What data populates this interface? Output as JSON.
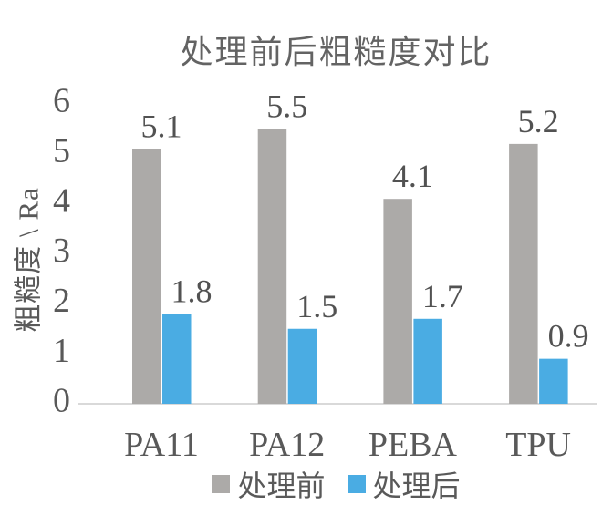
{
  "chart_data": {
    "type": "bar",
    "title": "处理前后粗糙度对比",
    "ylabel": "粗糙度 \\ Ra",
    "xlabel": "",
    "categories": [
      "PA11",
      "PA12",
      "PEBA",
      "TPU"
    ],
    "series": [
      {
        "key": "before",
        "name": "处理前",
        "color": "#acaaa8",
        "values": [
          5.1,
          5.5,
          4.1,
          5.2
        ]
      },
      {
        "key": "after",
        "name": "处理后",
        "color": "#4aace3",
        "values": [
          1.8,
          1.5,
          1.7,
          0.9
        ]
      }
    ],
    "ylim": [
      0,
      6
    ],
    "yticks": [
      0,
      1,
      2,
      3,
      4,
      5,
      6
    ],
    "grid": false,
    "data_labels": true,
    "legend_position": "bottom",
    "axis_line_color": "#d9d9d9",
    "text_color": "#595959"
  }
}
